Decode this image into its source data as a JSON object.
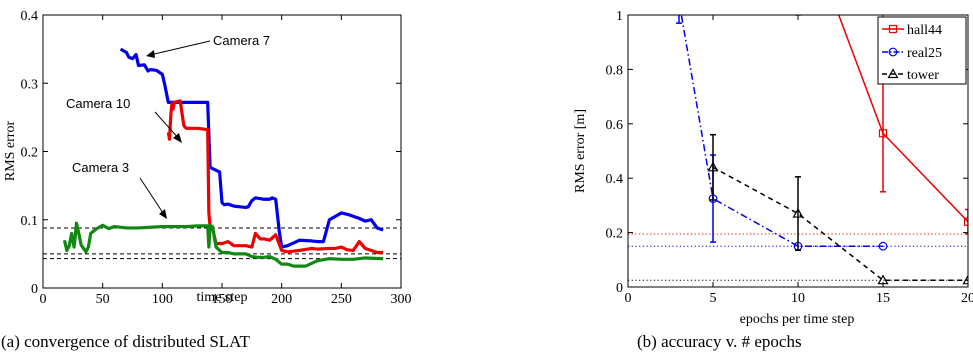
{
  "captions": [
    "(a) convergence of distributed SLAT",
    "(b) accuracy v. # epochs"
  ],
  "colors": {
    "blue": "#0000ee",
    "red": "#ee0000",
    "green": "#118811",
    "black": "#000000"
  },
  "chart_data": [
    {
      "type": "line",
      "title": "",
      "xlabel": "time step",
      "ylabel": "RMS error",
      "xlim": [
        0,
        300
      ],
      "ylim": [
        0,
        0.4
      ],
      "xticks": [
        0,
        50,
        100,
        150,
        200,
        250,
        300
      ],
      "yticks": [
        0,
        0.1,
        0.2,
        0.3,
        0.4
      ],
      "grid": false,
      "annotations": [
        "Camera 7",
        "Camera 10",
        "Camera 3"
      ],
      "reference_lines": [
        0.088,
        0.05,
        0.043
      ],
      "series": [
        {
          "name": "Camera 7",
          "color": "blue",
          "x": [
            65,
            68,
            70,
            72,
            75,
            78,
            80,
            85,
            88,
            90,
            95,
            100,
            102,
            105,
            110,
            130,
            138,
            140,
            142,
            148,
            150,
            152,
            155,
            160,
            165,
            170,
            172,
            175,
            178,
            182,
            185,
            190,
            192,
            195,
            198,
            200,
            205,
            215,
            225,
            230,
            235,
            240,
            245,
            250,
            255,
            265,
            270,
            275,
            280,
            285
          ],
          "y": [
            0.35,
            0.347,
            0.345,
            0.338,
            0.336,
            0.342,
            0.326,
            0.327,
            0.318,
            0.32,
            0.319,
            0.313,
            0.298,
            0.272,
            0.272,
            0.272,
            0.272,
            0.177,
            0.175,
            0.17,
            0.125,
            0.122,
            0.123,
            0.12,
            0.119,
            0.118,
            0.119,
            0.128,
            0.132,
            0.131,
            0.13,
            0.13,
            0.132,
            0.13,
            0.083,
            0.06,
            0.062,
            0.07,
            0.069,
            0.068,
            0.068,
            0.1,
            0.105,
            0.11,
            0.108,
            0.102,
            0.098,
            0.1,
            0.088,
            0.085
          ]
        },
        {
          "name": "Camera 10",
          "color": "red",
          "x": [
            105,
            106,
            107,
            108,
            109,
            110,
            115,
            118,
            120,
            130,
            138,
            139,
            140,
            142,
            145,
            150,
            155,
            160,
            170,
            175,
            178,
            182,
            185,
            190,
            195,
            200,
            205,
            215,
            225,
            230,
            240,
            245,
            250,
            255,
            260,
            265,
            270,
            280,
            285
          ],
          "y": [
            0.228,
            0.218,
            0.25,
            0.27,
            0.262,
            0.272,
            0.274,
            0.238,
            0.234,
            0.234,
            0.232,
            0.11,
            0.09,
            0.088,
            0.065,
            0.065,
            0.068,
            0.062,
            0.062,
            0.06,
            0.08,
            0.072,
            0.072,
            0.07,
            0.078,
            0.055,
            0.053,
            0.055,
            0.058,
            0.057,
            0.058,
            0.058,
            0.06,
            0.056,
            0.055,
            0.068,
            0.058,
            0.052,
            0.052
          ]
        },
        {
          "name": "Camera 3",
          "color": "green",
          "x": [
            18,
            20,
            22,
            24,
            26,
            27,
            28,
            30,
            32,
            34,
            36,
            38,
            40,
            45,
            50,
            55,
            60,
            70,
            80,
            90,
            100,
            110,
            120,
            130,
            138,
            139,
            140,
            142,
            145,
            150,
            155,
            160,
            170,
            175,
            180,
            185,
            190,
            195,
            200,
            205,
            210,
            220,
            230,
            240,
            250,
            260,
            270,
            285
          ],
          "y": [
            0.07,
            0.055,
            0.062,
            0.08,
            0.06,
            0.075,
            0.095,
            0.08,
            0.063,
            0.058,
            0.053,
            0.06,
            0.08,
            0.087,
            0.092,
            0.087,
            0.09,
            0.088,
            0.088,
            0.089,
            0.09,
            0.09,
            0.09,
            0.091,
            0.091,
            0.06,
            0.092,
            0.09,
            0.06,
            0.052,
            0.052,
            0.05,
            0.05,
            0.046,
            0.045,
            0.045,
            0.046,
            0.042,
            0.035,
            0.035,
            0.032,
            0.032,
            0.04,
            0.043,
            0.042,
            0.042,
            0.044,
            0.043
          ]
        }
      ]
    },
    {
      "type": "line",
      "title": "",
      "xlabel": "epochs per time step",
      "ylabel": "RMS error [m]",
      "xlim": [
        0,
        20
      ],
      "ylim": [
        0,
        1
      ],
      "xticks": [
        0,
        5,
        10,
        15,
        20
      ],
      "yticks": [
        0,
        0.2,
        0.4,
        0.6,
        0.8,
        1
      ],
      "grid": false,
      "legend_position": "top-right",
      "reference_lines": [
        {
          "value": 0.195,
          "color": "red"
        },
        {
          "value": 0.15,
          "color": "blue"
        },
        {
          "value": 0.025,
          "color": "black"
        }
      ],
      "series": [
        {
          "name": "hall44",
          "color": "red",
          "style": "solid",
          "marker": "square",
          "x": [
            10,
            15,
            20
          ],
          "y": [
            1.4,
            0.565,
            0.24
          ],
          "err": [
            0.4,
            0.215,
            0.045
          ]
        },
        {
          "name": "real25",
          "color": "blue",
          "style": "dashdot",
          "marker": "circle",
          "x": [
            3,
            5,
            10,
            15
          ],
          "y": [
            1.05,
            0.325,
            0.15,
            0.15
          ],
          "err": [
            0.08,
            0.16,
            0.0,
            0.0
          ]
        },
        {
          "name": "tower",
          "color": "black",
          "style": "dashed",
          "marker": "triangle",
          "x": [
            5,
            10,
            15,
            20
          ],
          "y": [
            0.44,
            0.27,
            0.025,
            0.025
          ],
          "err": [
            0.12,
            0.135,
            0.0,
            0.0
          ]
        }
      ]
    }
  ]
}
